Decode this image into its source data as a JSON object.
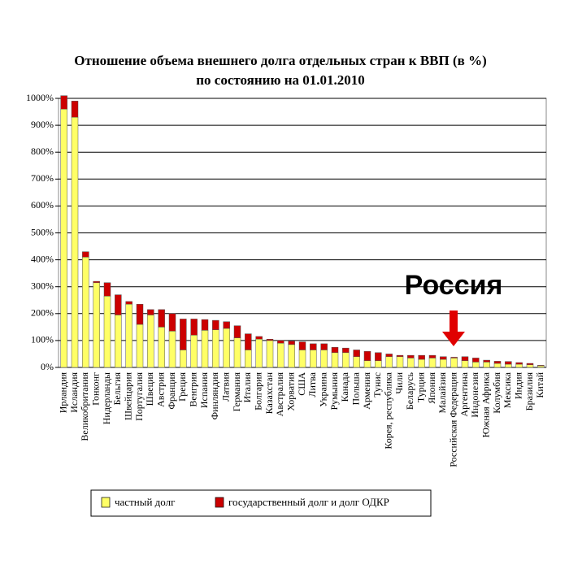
{
  "chart_data": {
    "type": "stacked-bar",
    "title": "Отношение объема внешнего долга отдельных стран к ВВП (в %)",
    "subtitle": "по состоянию на 01.01.2010",
    "annotation": "Россия",
    "categories": [
      "Ирландия",
      "Исландия",
      "Великобритания",
      "Гонконг",
      "Нидерланды",
      "Бельгия",
      "Швейцария",
      "Португалия",
      "Швеция",
      "Австрия",
      "Франция",
      "Греция",
      "Венгрия",
      "Испания",
      "Финляндия",
      "Латвия",
      "Германия",
      "Италия",
      "Болгария",
      "Казахстан",
      "Австралия",
      "Хорватия",
      "США",
      "Литва",
      "Украина",
      "Румыния",
      "Канада",
      "Польша",
      "Армения",
      "Тунис",
      "Корея, республика",
      "Чили",
      "Беларусь",
      "Турция",
      "Япония",
      "Малайзия",
      "Российская Федерация",
      "Аргентина",
      "Индонезия",
      "Южная Африка",
      "Колумбия",
      "Мексика",
      "Индия",
      "Бразилия",
      "Китай"
    ],
    "series": [
      {
        "name": "частный долг",
        "color": "#ffff66",
        "values": [
          960,
          930,
          410,
          315,
          265,
          195,
          235,
          160,
          195,
          150,
          135,
          65,
          120,
          138,
          140,
          145,
          110,
          65,
          105,
          100,
          90,
          85,
          65,
          65,
          65,
          55,
          55,
          40,
          25,
          25,
          40,
          40,
          35,
          30,
          35,
          30,
          35,
          25,
          20,
          20,
          15,
          12,
          12,
          10,
          6
        ]
      },
      {
        "name": "государственный долг и долг ОДКР",
        "color": "#cc0000",
        "values": [
          50,
          60,
          20,
          5,
          50,
          75,
          10,
          75,
          20,
          65,
          65,
          115,
          60,
          40,
          35,
          25,
          45,
          60,
          10,
          5,
          10,
          13,
          30,
          23,
          23,
          20,
          17,
          25,
          35,
          30,
          10,
          5,
          10,
          15,
          10,
          10,
          3,
          15,
          15,
          7,
          8,
          10,
          6,
          5,
          2
        ]
      }
    ],
    "ylim": [
      0,
      1000
    ],
    "yticks": [
      {
        "value": 0,
        "label": "0%"
      },
      {
        "value": 100,
        "label": "100%"
      },
      {
        "value": 200,
        "label": "200%"
      },
      {
        "value": 300,
        "label": "300%"
      },
      {
        "value": 400,
        "label": "400%"
      },
      {
        "value": 500,
        "label": "500%"
      },
      {
        "value": 600,
        "label": "600%"
      },
      {
        "value": 700,
        "label": "700%"
      },
      {
        "value": 800,
        "label": "800%"
      },
      {
        "value": 900,
        "label": "900%"
      },
      {
        "value": 1000,
        "label": "1000%"
      }
    ],
    "grid": true
  }
}
